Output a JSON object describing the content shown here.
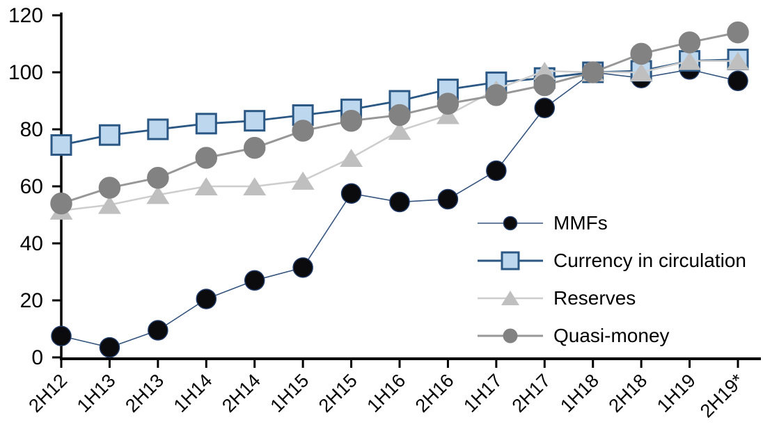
{
  "chart_data": {
    "type": "line",
    "title": "",
    "xlabel": "",
    "ylabel": "",
    "grid": false,
    "legend_position": "inside-right",
    "ylim": [
      0,
      120
    ],
    "yticks": [
      0,
      20,
      40,
      60,
      80,
      100,
      120
    ],
    "categories": [
      "2H12",
      "1H13",
      "2H13",
      "1H14",
      "2H14",
      "1H15",
      "2H15",
      "1H16",
      "2H16",
      "1H17",
      "2H17",
      "1H18",
      "2H18",
      "1H19",
      "2H19*"
    ],
    "series": [
      {
        "name": "MMFs",
        "marker": "circle",
        "marker_size": 28,
        "marker_color": "#0b0b0d",
        "marker_edge": "#1f3864",
        "line_color": "#35547e",
        "line_width": 1.6,
        "values": [
          7.5,
          3.5,
          9.5,
          20.5,
          27,
          31.5,
          57.5,
          54.5,
          55.5,
          65.5,
          87.5,
          100,
          98,
          101,
          97
        ]
      },
      {
        "name": "Currency in circulation",
        "marker": "square",
        "marker_size": 28,
        "marker_color": "#bdd7ee",
        "marker_edge": "#2a5783",
        "line_color": "#2a5783",
        "line_width": 2.8,
        "values": [
          74.5,
          78,
          80,
          82,
          83,
          85,
          87,
          90,
          94,
          96.5,
          98,
          100,
          100.5,
          104,
          104.5
        ]
      },
      {
        "name": "Reserves",
        "marker": "triangle",
        "marker_size": 33,
        "marker_color": "#bfbfbf",
        "marker_edge": "#bfbfbf",
        "line_color": "#cdcdcd",
        "line_width": 2.5,
        "values": [
          51.5,
          53.5,
          57,
          60,
          60,
          62,
          70,
          79.5,
          85,
          94,
          100.5,
          100,
          100,
          104,
          104
        ]
      },
      {
        "name": "Quasi-money",
        "marker": "circle",
        "marker_size": 30,
        "marker_color": "#828282",
        "marker_edge": "#828282",
        "line_color": "#979797",
        "line_width": 3,
        "values": [
          54,
          59.5,
          63,
          70,
          73.5,
          79.5,
          83,
          85,
          89,
          92,
          95.5,
          100,
          106.5,
          110.5,
          114
        ]
      }
    ],
    "axis_color": "#000000",
    "tick_label_color": "#000000",
    "index_note": "1H18 = 100"
  }
}
